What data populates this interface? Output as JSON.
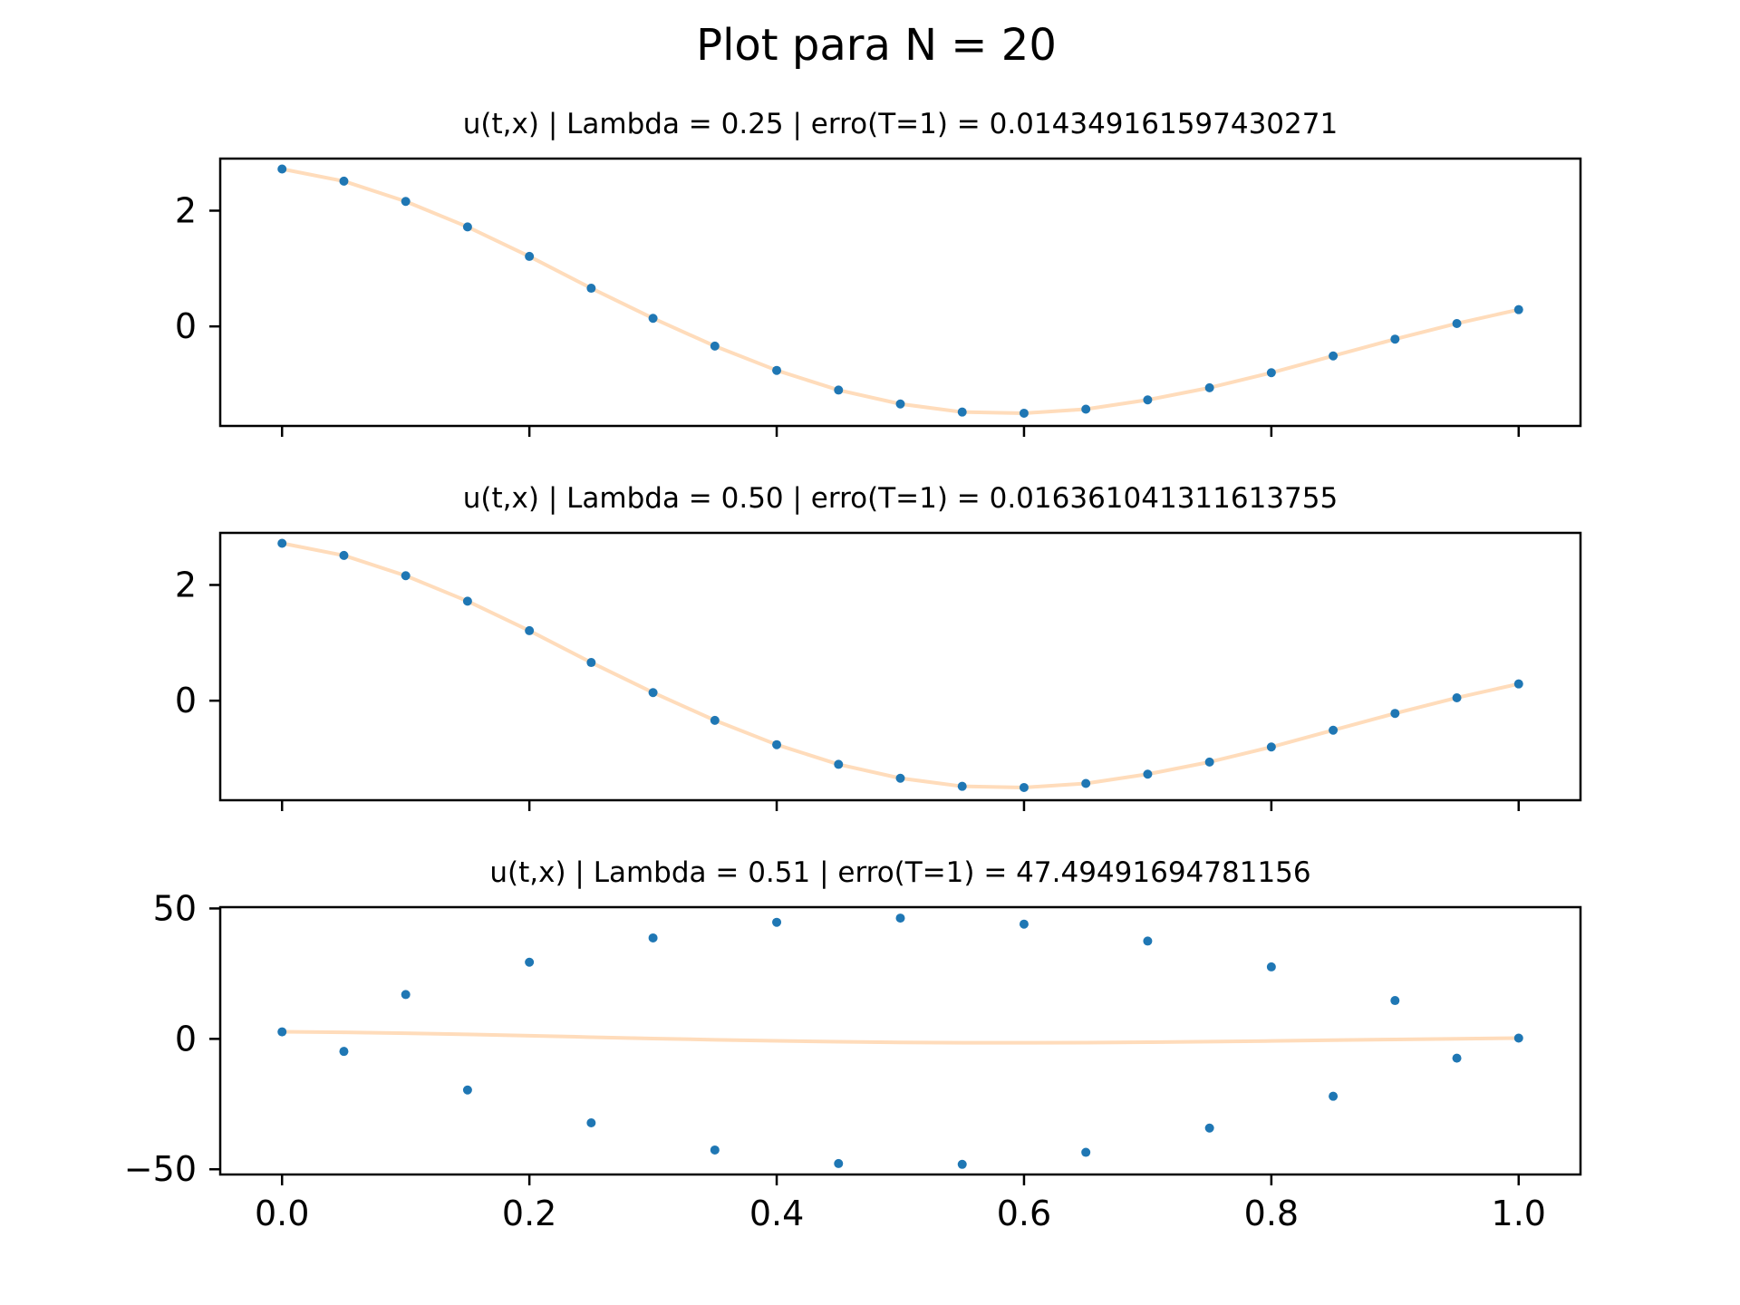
{
  "figure": {
    "suptitle": "Plot para N = 20"
  },
  "colors": {
    "points": "#1f77b4",
    "curve": "#ffdcbb",
    "axes": "#000000"
  },
  "chart_data": [
    {
      "type": "scatter",
      "title": "u(t,x) | Lambda = 0.25 | erro(T=1) = 0.014349161597430271",
      "xlabel": "",
      "ylabel": "",
      "xlim": [
        -0.05,
        1.05
      ],
      "ylim": [
        -1.72,
        2.9
      ],
      "xticks": [
        0.0,
        0.2,
        0.4,
        0.6,
        0.8,
        1.0
      ],
      "xtick_labels_visible": false,
      "yticks": [
        0,
        2
      ],
      "ytick_labels": [
        "0",
        "2"
      ],
      "x": [
        0.0,
        0.05,
        0.1,
        0.15,
        0.2,
        0.25,
        0.3,
        0.35,
        0.4,
        0.45,
        0.5,
        0.55,
        0.6,
        0.65,
        0.7,
        0.75,
        0.8,
        0.85,
        0.9,
        0.95,
        1.0
      ],
      "values": [
        2.72,
        2.51,
        2.16,
        1.72,
        1.21,
        0.66,
        0.14,
        -0.34,
        -0.76,
        -1.1,
        -1.34,
        -1.48,
        -1.5,
        -1.43,
        -1.27,
        -1.06,
        -0.8,
        -0.51,
        -0.22,
        0.05,
        0.29
      ],
      "curve_x": [
        0.0,
        0.05,
        0.1,
        0.15,
        0.2,
        0.25,
        0.3,
        0.35,
        0.4,
        0.45,
        0.5,
        0.55,
        0.6,
        0.65,
        0.7,
        0.75,
        0.8,
        0.85,
        0.9,
        0.95,
        1.0
      ],
      "curve_y": [
        2.72,
        2.51,
        2.16,
        1.72,
        1.21,
        0.66,
        0.14,
        -0.34,
        -0.76,
        -1.1,
        -1.34,
        -1.48,
        -1.5,
        -1.43,
        -1.27,
        -1.06,
        -0.8,
        -0.51,
        -0.22,
        0.05,
        0.29
      ]
    },
    {
      "type": "scatter",
      "title": "u(t,x) | Lambda = 0.50 | erro(T=1) = 0.016361041311613755",
      "xlabel": "",
      "ylabel": "",
      "xlim": [
        -0.05,
        1.05
      ],
      "ylim": [
        -1.72,
        2.9
      ],
      "xticks": [
        0.0,
        0.2,
        0.4,
        0.6,
        0.8,
        1.0
      ],
      "xtick_labels_visible": false,
      "yticks": [
        0,
        2
      ],
      "ytick_labels": [
        "0",
        "2"
      ],
      "x": [
        0.0,
        0.05,
        0.1,
        0.15,
        0.2,
        0.25,
        0.3,
        0.35,
        0.4,
        0.45,
        0.5,
        0.55,
        0.6,
        0.65,
        0.7,
        0.75,
        0.8,
        0.85,
        0.9,
        0.95,
        1.0
      ],
      "values": [
        2.72,
        2.51,
        2.16,
        1.72,
        1.21,
        0.66,
        0.14,
        -0.34,
        -0.76,
        -1.1,
        -1.34,
        -1.48,
        -1.5,
        -1.43,
        -1.27,
        -1.06,
        -0.8,
        -0.51,
        -0.22,
        0.05,
        0.29
      ],
      "curve_x": [
        0.0,
        0.05,
        0.1,
        0.15,
        0.2,
        0.25,
        0.3,
        0.35,
        0.4,
        0.45,
        0.5,
        0.55,
        0.6,
        0.65,
        0.7,
        0.75,
        0.8,
        0.85,
        0.9,
        0.95,
        1.0
      ],
      "curve_y": [
        2.72,
        2.51,
        2.16,
        1.72,
        1.21,
        0.66,
        0.14,
        -0.34,
        -0.76,
        -1.1,
        -1.34,
        -1.48,
        -1.5,
        -1.43,
        -1.27,
        -1.06,
        -0.8,
        -0.51,
        -0.22,
        0.05,
        0.29
      ]
    },
    {
      "type": "scatter",
      "title": "u(t,x) | Lambda = 0.51 | erro(T=1) = 47.49491694781156",
      "xlabel": "",
      "ylabel": "",
      "xlim": [
        -0.05,
        1.05
      ],
      "ylim": [
        -52,
        50.5
      ],
      "xticks": [
        0.0,
        0.2,
        0.4,
        0.6,
        0.8,
        1.0
      ],
      "xtick_labels_visible": true,
      "xtick_labels": [
        "0.0",
        "0.2",
        "0.4",
        "0.6",
        "0.8",
        "1.0"
      ],
      "yticks": [
        -50,
        0,
        50
      ],
      "ytick_labels": [
        "−50",
        "0",
        "50"
      ],
      "x": [
        0.0,
        0.05,
        0.1,
        0.15,
        0.2,
        0.25,
        0.3,
        0.35,
        0.4,
        0.45,
        0.5,
        0.55,
        0.6,
        0.65,
        0.7,
        0.75,
        0.8,
        0.85,
        0.9,
        0.95,
        1.0
      ],
      "values": [
        2.7,
        -4.8,
        17.0,
        -19.6,
        29.4,
        -32.2,
        38.7,
        -42.6,
        44.7,
        -47.8,
        46.3,
        -48.1,
        44.0,
        -43.5,
        37.5,
        -34.2,
        27.6,
        -22.0,
        14.7,
        -7.4,
        0.3
      ],
      "curve_x": [
        0.0,
        0.05,
        0.1,
        0.15,
        0.2,
        0.25,
        0.3,
        0.35,
        0.4,
        0.45,
        0.5,
        0.55,
        0.6,
        0.65,
        0.7,
        0.75,
        0.8,
        0.85,
        0.9,
        0.95,
        1.0
      ],
      "curve_y": [
        2.72,
        2.51,
        2.16,
        1.72,
        1.21,
        0.66,
        0.14,
        -0.34,
        -0.76,
        -1.1,
        -1.34,
        -1.48,
        -1.5,
        -1.43,
        -1.27,
        -1.06,
        -0.8,
        -0.51,
        -0.22,
        0.05,
        0.29
      ]
    }
  ]
}
